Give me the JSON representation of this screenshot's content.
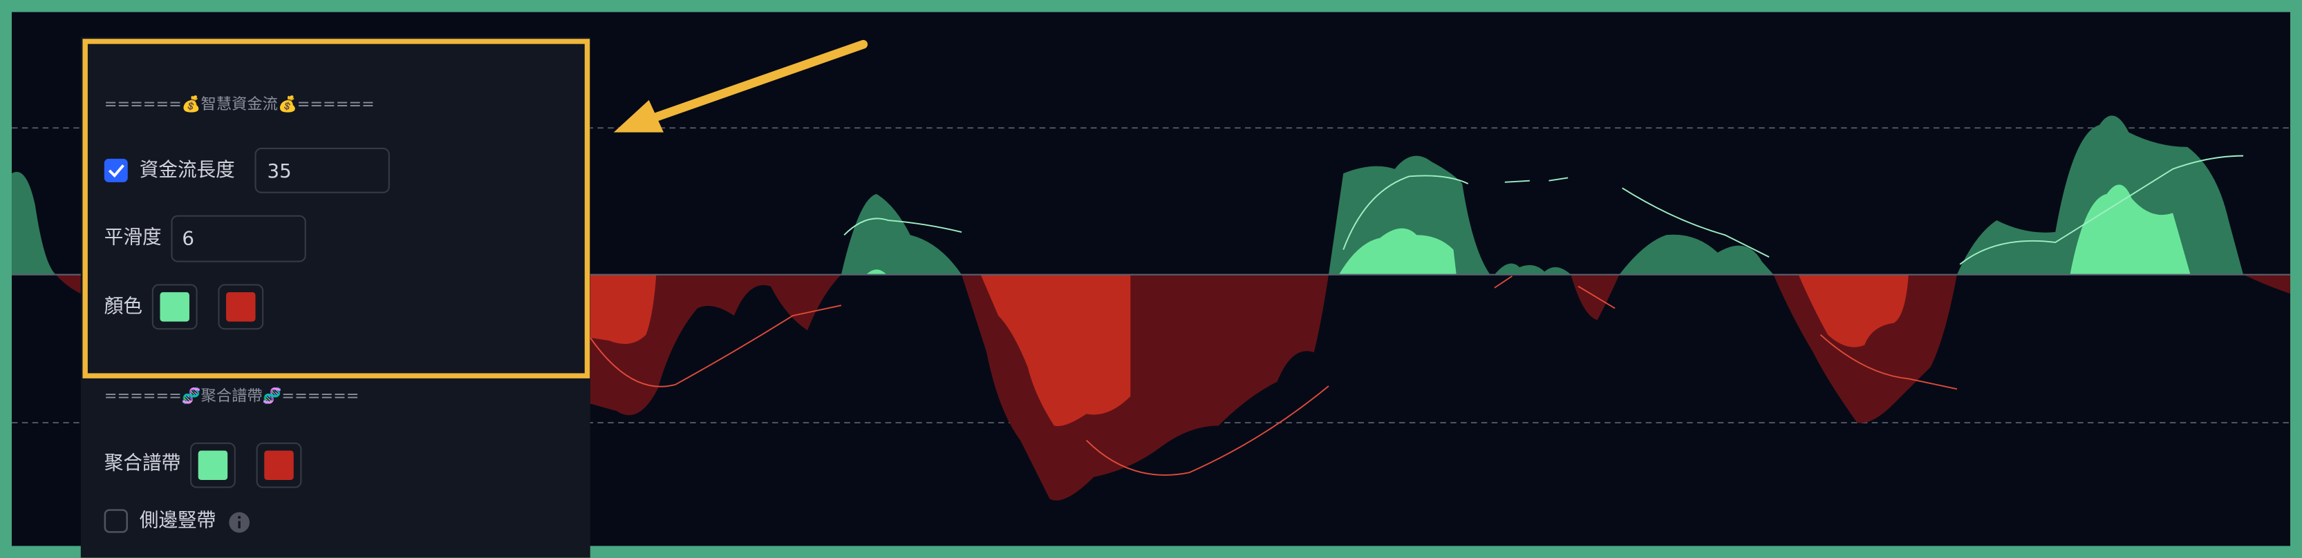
{
  "settings": {
    "section1": {
      "header": "======💰智慧資金流💰======",
      "length_label": "資金流長度",
      "length_value": 35,
      "smooth_label": "平滑度",
      "smooth_value": 6,
      "color_label": "顏色"
    },
    "section2": {
      "header": "======🧬聚合譜帶🧬======",
      "band_label": "聚合譜帶",
      "side_label": "側邊豎帶"
    }
  }
}
